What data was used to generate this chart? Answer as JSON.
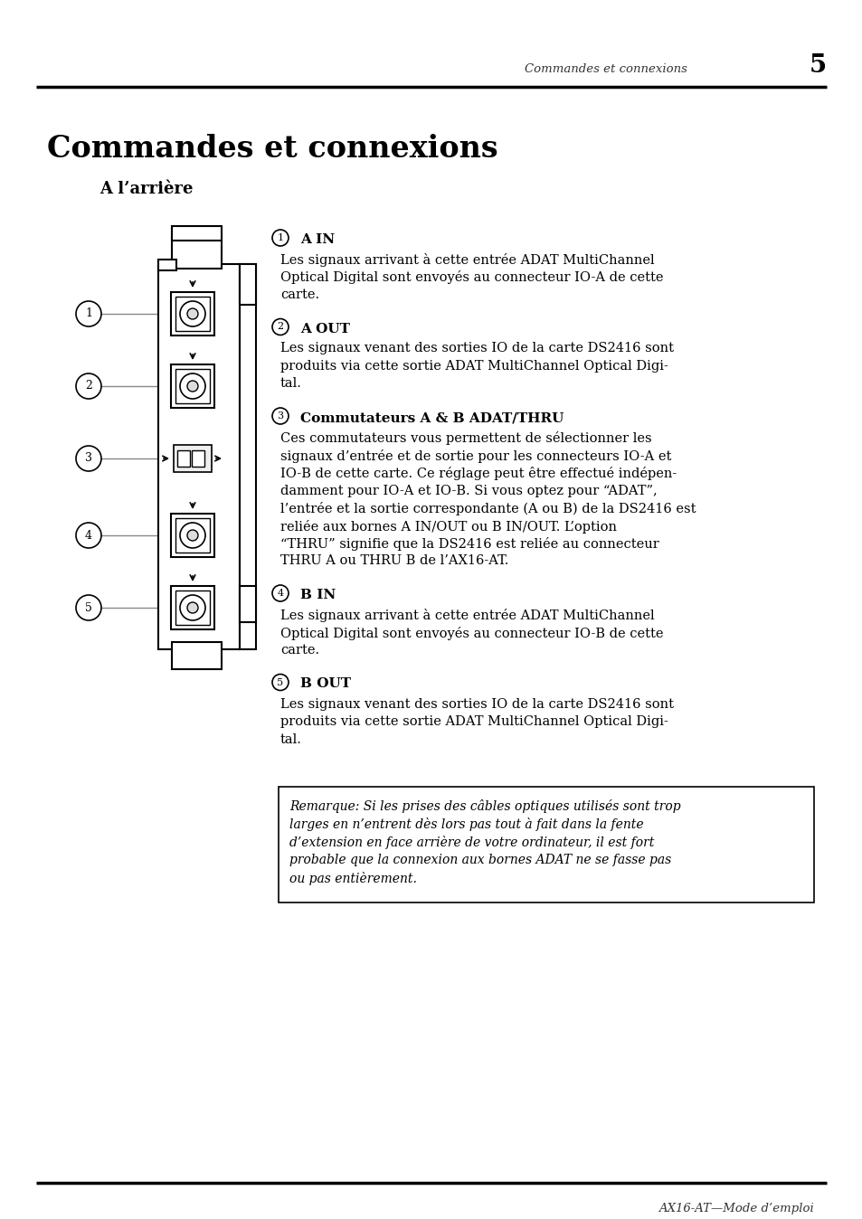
{
  "page_header_text": "Commandes et connexions",
  "page_number": "5",
  "main_title": "Commandes et connexions",
  "subtitle": "A l’arrière",
  "footer_text": "AX16-AT—Mode d’emploi",
  "sections": [
    {
      "num": "1",
      "heading": "A IN",
      "heading_bold": false,
      "body": "Les signaux arrivant à cette entrée ADAT MultiChannel\nOptical Digital sont envoyés au connecteur IO-A de cette\ncarte."
    },
    {
      "num": "2",
      "heading": "A OUT",
      "heading_bold": false,
      "body": "Les signaux venant des sorties IO de la carte DS2416 sont\nproduits via cette sortie ADAT MultiChannel Optical Digi-\ntal."
    },
    {
      "num": "3",
      "heading": "Commutateurs A & B ADAT/THRU",
      "heading_bold": true,
      "body": "Ces commutateurs vous permettent de sélectionner les\nsignaux d’entrée et de sortie pour les connecteurs IO-A et\nIO-B de cette carte. Ce réglage peut être effectué indépen-\ndamment pour IO-A et IO-B. Si vous optez pour “ADAT”,\nl’entrée et la sortie correspondante (A ou B) de la DS2416 est\nreliée aux bornes A IN/OUT ou B IN/OUT. L’option\n“THRU” signifie que la DS2416 est reliée au connecteur\nTHRU A ou THRU B de l’AX16-AT."
    },
    {
      "num": "4",
      "heading": "B IN",
      "heading_bold": false,
      "body": "Les signaux arrivant à cette entrée ADAT MultiChannel\nOptical Digital sont envoyés au connecteur IO-B de cette\ncarte."
    },
    {
      "num": "5",
      "heading": "B OUT",
      "heading_bold": false,
      "body": "Les signaux venant des sorties IO de la carte DS2416 sont\nproduits via cette sortie ADAT MultiChannel Optical Digi-\ntal."
    }
  ],
  "note_lines": [
    "Remarque: Si les prises des câbles optiques utilisés sont trop",
    "larges en n’entrent dès lors pas tout à fait dans la fente",
    "d’extension en face arrière de votre ordinateur, il est fort",
    "probable que la connexion aux bornes ADAT ne se fasse pas",
    "ou pas entièrement."
  ],
  "bg_color": "#ffffff",
  "text_color": "#000000"
}
